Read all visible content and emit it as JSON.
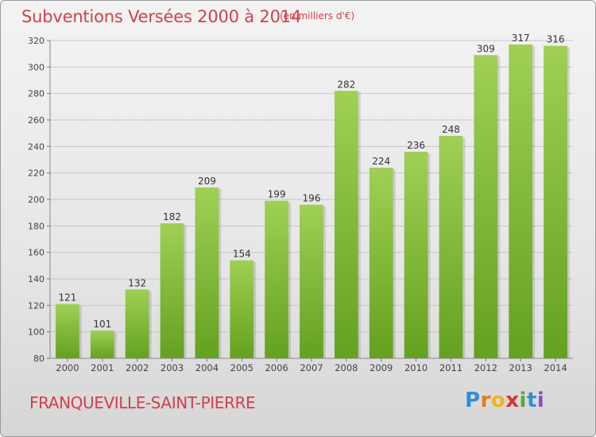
{
  "title": "Subventions Versées 2000 à 2014",
  "subtitle": "(en milliers d'€)",
  "location": "FRANQUEVILLE-SAINT-PIERRE",
  "logo": {
    "text": "Proxiti",
    "letters": [
      "P",
      "r",
      "o",
      "x",
      "i",
      "t",
      "i"
    ],
    "colors": [
      "#2f8fd6",
      "#e77b1c",
      "#f0b41c",
      "#d6352f",
      "#5aa83a",
      "#2f8fd6",
      "#8c4fb5"
    ]
  },
  "colors": {
    "text": "#d2404c",
    "bar_top": "#9fd055",
    "bar_bottom": "#64a11f",
    "grid": "#c8c8c8",
    "axis_text": "#444444"
  },
  "chart_data": {
    "type": "bar",
    "categories": [
      "2000",
      "2001",
      "2002",
      "2003",
      "2004",
      "2005",
      "2006",
      "2007",
      "2008",
      "2009",
      "2010",
      "2011",
      "2012",
      "2013",
      "2014"
    ],
    "values": [
      121,
      101,
      132,
      182,
      209,
      154,
      199,
      196,
      282,
      224,
      236,
      248,
      309,
      317,
      316
    ],
    "value_labels": [
      "121",
      "101",
      "132",
      "182",
      "209",
      "154",
      "199",
      "196",
      "282",
      "224",
      "236",
      "248",
      "309",
      "317",
      "316"
    ],
    "ylim": [
      80,
      320
    ],
    "yticks": [
      80,
      100,
      120,
      140,
      160,
      180,
      200,
      220,
      240,
      260,
      280,
      300,
      320
    ],
    "ytick_labels": [
      "80",
      "100",
      "120",
      "140",
      "160",
      "180",
      "200",
      "220",
      "240",
      "260",
      "280",
      "300",
      "320"
    ],
    "grid": true,
    "xlabel": "",
    "ylabel": ""
  }
}
